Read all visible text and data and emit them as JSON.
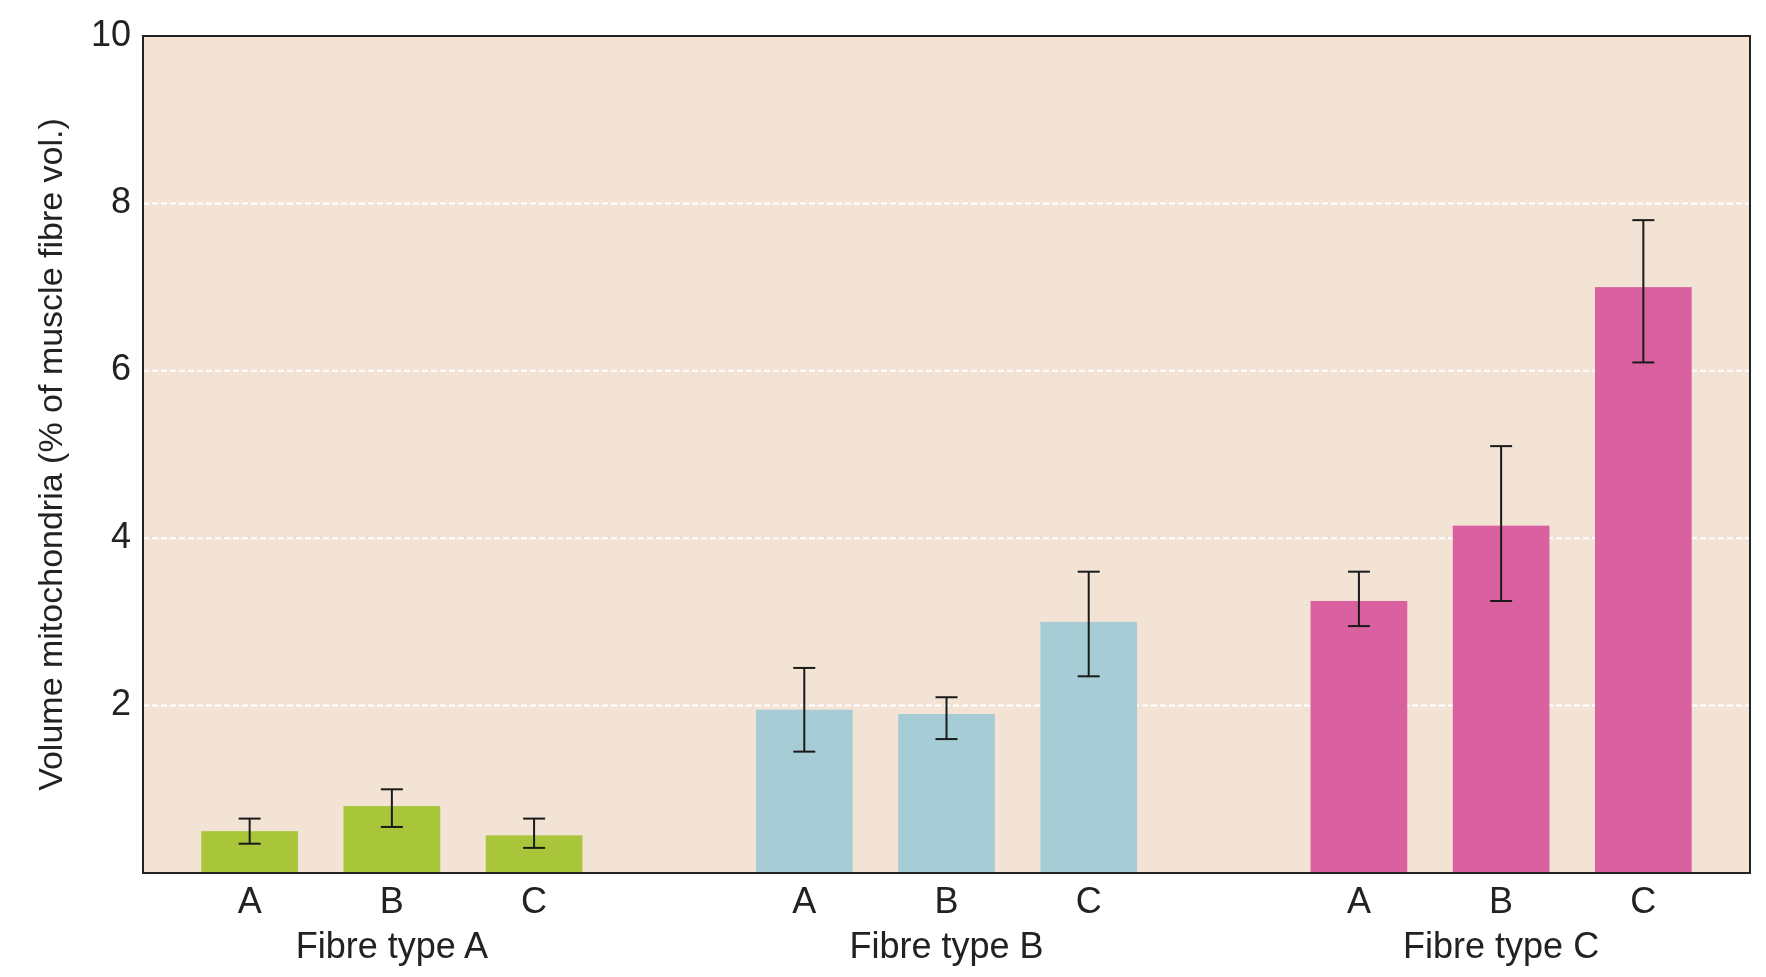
{
  "chart_data": {
    "type": "bar",
    "ylabel": "Volume mitochondria (% of muscle fibre vol.)",
    "categories": [
      "A",
      "B",
      "C",
      "A",
      "B",
      "C",
      "A",
      "B",
      "C"
    ],
    "values": [
      0.5,
      0.8,
      0.45,
      1.95,
      1.9,
      3.0,
      3.25,
      4.15,
      7.0
    ],
    "colors": [
      "#a9c63a",
      "#a9c63a",
      "#a9c63a",
      "#a6ccd6",
      "#a6ccd6",
      "#a6ccd6",
      "#d9619f",
      "#d9619f",
      "#d9619f"
    ],
    "errors": [
      [
        0.35,
        0.65
      ],
      [
        0.55,
        1.0
      ],
      [
        0.3,
        0.65
      ],
      [
        1.45,
        2.45
      ],
      [
        1.6,
        2.1
      ],
      [
        2.35,
        3.6
      ],
      [
        2.95,
        3.6
      ],
      [
        3.25,
        5.1
      ],
      [
        6.1,
        7.8
      ]
    ],
    "annotations": [
      "Fibre type A",
      "Fibre type B",
      "Fibre type C"
    ],
    "ylim": [
      0,
      10
    ],
    "yticks": [
      2,
      4,
      6,
      8,
      10
    ],
    "grid": "y"
  }
}
